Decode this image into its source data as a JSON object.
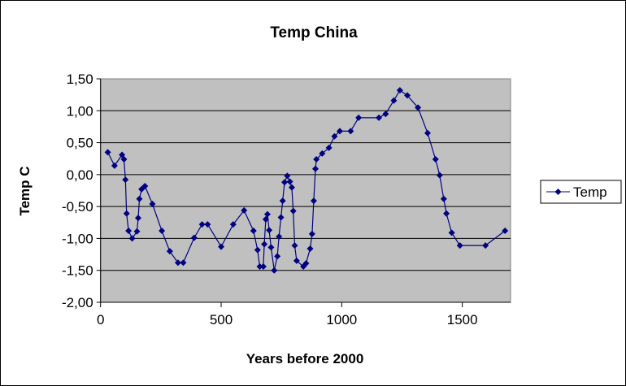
{
  "chart_data": {
    "type": "line",
    "title": "Temp China",
    "xlabel": "Years before 2000",
    "ylabel": "Temp C",
    "xlim": [
      0,
      1700
    ],
    "ylim": [
      -2.0,
      1.5
    ],
    "xticks": [
      0,
      500,
      1000,
      1500
    ],
    "xtick_labels": [
      "0",
      "500",
      "1000",
      "1500"
    ],
    "yticks": [
      -2.0,
      -1.5,
      -1.0,
      -0.5,
      0.0,
      0.5,
      1.0,
      1.5
    ],
    "ytick_labels": [
      "-2,00",
      "-1,50",
      "-1,00",
      "-0,50",
      "0,00",
      "0,50",
      "1,00",
      "1,50"
    ],
    "grid": "horizontal",
    "plot_background": "#c0c0c0",
    "legend_position": "right",
    "series": [
      {
        "name": "Temp",
        "color": "#000080",
        "marker": "diamond",
        "x": [
          30,
          58,
          89,
          97,
          103,
          108,
          116,
          131,
          151,
          156,
          161,
          170,
          184,
          215,
          254,
          287,
          321,
          343,
          388,
          421,
          444,
          500,
          550,
          595,
          634,
          651,
          660,
          675,
          679,
          685,
          692,
          699,
          707,
          720,
          733,
          740,
          748,
          755,
          763,
          774,
          785,
          793,
          799,
          805,
          813,
          841,
          852,
          869,
          877,
          884,
          891,
          895,
          919,
          947,
          970,
          992,
          1037,
          1070,
          1154,
          1182,
          1216,
          1241,
          1272,
          1316,
          1356,
          1389,
          1406,
          1423,
          1434,
          1456,
          1490,
          1596,
          1677
        ],
        "y": [
          0.35,
          0.14,
          0.31,
          0.24,
          -0.08,
          -0.61,
          -0.88,
          -1.0,
          -0.89,
          -0.68,
          -0.38,
          -0.23,
          -0.18,
          -0.46,
          -0.88,
          -1.2,
          -1.38,
          -1.38,
          -0.99,
          -0.78,
          -0.78,
          -1.13,
          -0.78,
          -0.56,
          -0.88,
          -1.18,
          -1.44,
          -1.44,
          -1.09,
          -0.7,
          -0.62,
          -0.87,
          -1.14,
          -1.5,
          -1.28,
          -0.97,
          -0.67,
          -0.41,
          -0.12,
          -0.02,
          -0.11,
          -0.2,
          -0.57,
          -1.11,
          -1.35,
          -1.44,
          -1.39,
          -1.16,
          -0.93,
          -0.41,
          0.09,
          0.24,
          0.33,
          0.42,
          0.6,
          0.68,
          0.68,
          0.89,
          0.89,
          0.95,
          1.16,
          1.32,
          1.24,
          1.05,
          0.65,
          0.24,
          -0.01,
          -0.38,
          -0.61,
          -0.91,
          -1.11,
          -1.11,
          -0.88
        ]
      }
    ]
  }
}
